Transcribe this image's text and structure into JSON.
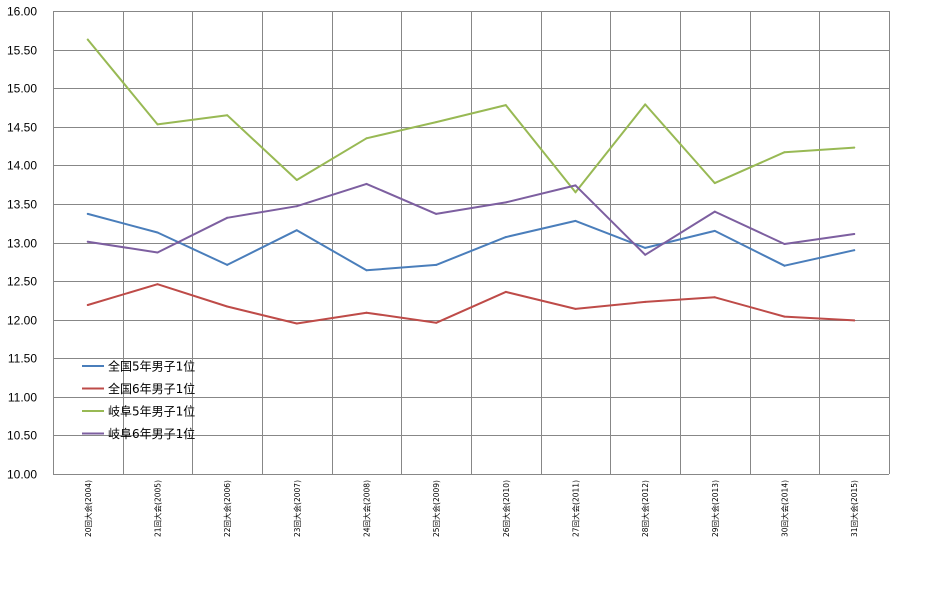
{
  "chart_data": {
    "type": "line",
    "title": "",
    "xlabel": "",
    "ylabel": "",
    "ylim": [
      10.0,
      16.0
    ],
    "ystep": 0.5,
    "yticks": [
      "10.00",
      "10.50",
      "11.00",
      "11.50",
      "12.00",
      "12.50",
      "13.00",
      "13.50",
      "14.00",
      "14.50",
      "15.00",
      "15.50",
      "16.00"
    ],
    "grid": true,
    "legend_position": "left-middle",
    "categories": [
      "20回大会(2004)",
      "21回大会(2005)",
      "22回大会(2006)",
      "23回大会(2007)",
      "24回大会(2008)",
      "25回大会(2009)",
      "26回大会(2010)",
      "27回大会(2011)",
      "28回大会(2012)",
      "29回大会(2013)",
      "30回大会(2014)",
      "31回大会(2015)"
    ],
    "series": [
      {
        "name": "全国5年男子1位",
        "color": "#4a7ebb",
        "values": [
          13.37,
          13.13,
          12.71,
          13.16,
          12.64,
          12.71,
          13.07,
          13.28,
          12.93,
          13.15,
          12.7,
          12.9
        ]
      },
      {
        "name": "全国6年男子1位",
        "color": "#be4b48",
        "values": [
          12.19,
          12.46,
          12.17,
          11.95,
          12.09,
          11.96,
          12.36,
          12.14,
          12.23,
          12.29,
          12.04,
          11.99
        ]
      },
      {
        "name": "岐阜5年男子1位",
        "color": "#98b954",
        "values": [
          15.63,
          14.53,
          14.65,
          13.81,
          14.35,
          14.56,
          14.78,
          13.65,
          14.79,
          13.77,
          14.17,
          14.23
        ]
      },
      {
        "name": "岐阜6年男子1位",
        "color": "#7d5fa0",
        "values": [
          13.01,
          12.87,
          13.32,
          13.47,
          13.76,
          13.37,
          13.52,
          13.74,
          12.84,
          13.4,
          12.98,
          13.11
        ]
      }
    ]
  }
}
